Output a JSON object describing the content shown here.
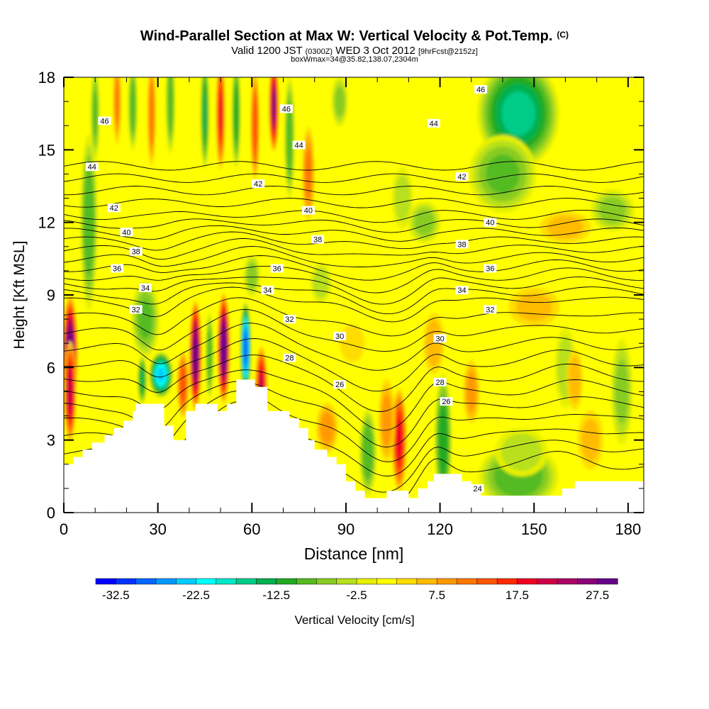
{
  "chart_data": {
    "type": "heatmap",
    "title": "Wind-Parallel Section at Max W: Vertical Velocity & Pot.Temp.",
    "title_mark": "(C)",
    "subtitle": {
      "valid_prefix": "Valid 1200 JST",
      "utc": "(0300Z)",
      "date": "WED 3 Oct 2012",
      "forecast": "[9hrFcst@2152z]"
    },
    "box_info": "boxWmax=34@35.82,138.07,2304m",
    "xlabel": "Distance [nm]",
    "ylabel": "Height [Kft MSL]",
    "xlim": [
      0,
      185
    ],
    "ylim": [
      0,
      18
    ],
    "xticks": [
      0,
      30,
      60,
      90,
      120,
      150,
      180
    ],
    "yticks": [
      0,
      3,
      6,
      9,
      12,
      15,
      18
    ],
    "colorbar": {
      "label": "Vertical Velocity [cm/s]",
      "tick_labels": [
        "-32.5",
        "-22.5",
        "-12.5",
        "-2.5",
        "7.5",
        "17.5",
        "27.5"
      ],
      "colors": [
        "#0000ff",
        "#0033ff",
        "#0066ff",
        "#0099ff",
        "#00ccff",
        "#00ffff",
        "#00e8c8",
        "#00cc88",
        "#00b050",
        "#22aa22",
        "#55bb22",
        "#88cc22",
        "#b8e01e",
        "#e6f000",
        "#ffff00",
        "#ffdd00",
        "#ffbb00",
        "#ff9900",
        "#ff7700",
        "#ff5500",
        "#ff2a00",
        "#ee0022",
        "#cc0044",
        "#aa0066",
        "#880077",
        "#660088"
      ]
    },
    "background_color": "#ffff00",
    "terrain": [
      [
        0,
        2.0
      ],
      [
        3,
        2.0
      ],
      [
        3,
        2.3
      ],
      [
        6,
        2.3
      ],
      [
        6,
        2.6
      ],
      [
        9,
        2.6
      ],
      [
        9,
        2.9
      ],
      [
        13,
        2.9
      ],
      [
        13,
        3.2
      ],
      [
        16,
        3.2
      ],
      [
        16,
        3.5
      ],
      [
        19,
        3.5
      ],
      [
        19,
        3.8
      ],
      [
        22,
        3.8
      ],
      [
        22,
        4.2
      ],
      [
        23,
        4.2
      ],
      [
        23,
        4.5
      ],
      [
        32,
        4.5
      ],
      [
        32,
        3.6
      ],
      [
        35,
        3.6
      ],
      [
        35,
        3.0
      ],
      [
        39,
        3.0
      ],
      [
        39,
        4.2
      ],
      [
        42,
        4.2
      ],
      [
        42,
        4.5
      ],
      [
        49,
        4.5
      ],
      [
        49,
        4.2
      ],
      [
        52,
        4.2
      ],
      [
        52,
        4.5
      ],
      [
        55,
        4.5
      ],
      [
        55,
        5.5
      ],
      [
        61,
        5.5
      ],
      [
        61,
        5.2
      ],
      [
        65,
        5.2
      ],
      [
        65,
        4.2
      ],
      [
        72,
        4.2
      ],
      [
        72,
        3.9
      ],
      [
        75,
        3.9
      ],
      [
        75,
        3.5
      ],
      [
        78,
        3.5
      ],
      [
        78,
        3.0
      ],
      [
        80,
        3.0
      ],
      [
        80,
        2.6
      ],
      [
        84,
        2.6
      ],
      [
        84,
        2.3
      ],
      [
        87,
        2.3
      ],
      [
        87,
        2.0
      ],
      [
        90,
        2.0
      ],
      [
        90,
        1.3
      ],
      [
        93,
        1.3
      ],
      [
        93,
        0.9
      ],
      [
        96,
        0.9
      ],
      [
        96,
        0.6
      ],
      [
        103,
        0.6
      ],
      [
        103,
        0.9
      ],
      [
        110,
        0.9
      ],
      [
        110,
        0.6
      ],
      [
        113,
        0.6
      ],
      [
        113,
        1.0
      ],
      [
        116,
        1.0
      ],
      [
        116,
        1.3
      ],
      [
        118,
        1.3
      ],
      [
        118,
        1.6
      ],
      [
        127,
        1.6
      ],
      [
        127,
        1.3
      ],
      [
        130,
        1.3
      ],
      [
        130,
        1.0
      ],
      [
        133,
        1.0
      ],
      [
        133,
        0.7
      ],
      [
        159,
        0.7
      ],
      [
        159,
        1.0
      ],
      [
        163,
        1.0
      ],
      [
        163,
        1.3
      ],
      [
        185,
        1.3
      ],
      [
        185,
        0
      ],
      [
        0,
        0
      ]
    ],
    "anomalies": [
      {
        "x": 2,
        "y": 6.5,
        "w": 30,
        "rx": 2.5,
        "ry": 2.6
      },
      {
        "x": 2,
        "y": 5.0,
        "w": 22,
        "rx": 2.0,
        "ry": 2.2
      },
      {
        "x": 8,
        "y": 12.0,
        "w": -12,
        "rx": 3,
        "ry": 4
      },
      {
        "x": 26,
        "y": 8.0,
        "w": -10,
        "rx": 5,
        "ry": 1.8
      },
      {
        "x": 31,
        "y": 5.7,
        "w": -25,
        "rx": 4,
        "ry": 1.0
      },
      {
        "x": 38,
        "y": 5.6,
        "w": -20,
        "rx": 1.6,
        "ry": 1.0
      },
      {
        "x": 25,
        "y": 5.5,
        "w": -15,
        "rx": 1.6,
        "ry": 1.1
      },
      {
        "x": 42,
        "y": 6.5,
        "w": 28,
        "rx": 2,
        "ry": 2.4
      },
      {
        "x": 51,
        "y": 6.8,
        "w": 30,
        "rx": 2,
        "ry": 2.4
      },
      {
        "x": 46.5,
        "y": 6.5,
        "w": -12,
        "rx": 1.4,
        "ry": 2.0
      },
      {
        "x": 58,
        "y": 6.8,
        "w": -32,
        "rx": 1.8,
        "ry": 2.0
      },
      {
        "x": 63,
        "y": 5.2,
        "w": 20,
        "rx": 2,
        "ry": 1.8
      },
      {
        "x": 38,
        "y": 5.3,
        "w": 14,
        "rx": 2,
        "ry": 1.5
      },
      {
        "x": 10,
        "y": 16.5,
        "w": -10,
        "rx": 1.6,
        "ry": 2.2
      },
      {
        "x": 17,
        "y": 17,
        "w": 10,
        "rx": 1.4,
        "ry": 2.0
      },
      {
        "x": 22,
        "y": 16.8,
        "w": -12,
        "rx": 1.6,
        "ry": 2.0
      },
      {
        "x": 28,
        "y": 16.5,
        "w": 12,
        "rx": 1.4,
        "ry": 2.4
      },
      {
        "x": 34,
        "y": 17,
        "w": -12,
        "rx": 1.6,
        "ry": 2.4
      },
      {
        "x": 45,
        "y": 16.5,
        "w": -15,
        "rx": 1.5,
        "ry": 2.5
      },
      {
        "x": 50,
        "y": 16.5,
        "w": 18,
        "rx": 1.5,
        "ry": 2.5
      },
      {
        "x": 55,
        "y": 16.5,
        "w": -14,
        "rx": 1.5,
        "ry": 2.5
      },
      {
        "x": 61,
        "y": 16.0,
        "w": 14,
        "rx": 1.5,
        "ry": 2.5
      },
      {
        "x": 67,
        "y": 16.8,
        "w": 25,
        "rx": 1.6,
        "ry": 2.0
      },
      {
        "x": 72,
        "y": 15.5,
        "w": -12,
        "rx": 1.8,
        "ry": 2.8
      },
      {
        "x": 78,
        "y": 14.0,
        "w": 10,
        "rx": 2.2,
        "ry": 2.2
      },
      {
        "x": 88,
        "y": 17.0,
        "w": -8,
        "rx": 3,
        "ry": 1.2
      },
      {
        "x": 108,
        "y": 13.0,
        "w": -6,
        "rx": 4,
        "ry": 1.5
      },
      {
        "x": 115,
        "y": 12.0,
        "w": -8,
        "rx": 6,
        "ry": 1.0
      },
      {
        "x": 145,
        "y": 16.5,
        "w": -18,
        "rx": 14,
        "ry": 2.4
      },
      {
        "x": 140,
        "y": 14.0,
        "w": -10,
        "rx": 12,
        "ry": 1.8
      },
      {
        "x": 175,
        "y": 12.5,
        "w": -8,
        "rx": 8,
        "ry": 1.0
      },
      {
        "x": 160,
        "y": 11.8,
        "w": 5,
        "rx": 10,
        "ry": 0.8
      },
      {
        "x": 82,
        "y": 9.5,
        "w": -6,
        "rx": 4,
        "ry": 1.0
      },
      {
        "x": 60,
        "y": 9.8,
        "w": -8,
        "rx": 3,
        "ry": 1.0
      },
      {
        "x": 97,
        "y": 2.5,
        "w": -12,
        "rx": 3,
        "ry": 2.0
      },
      {
        "x": 107,
        "y": 3.0,
        "w": 18,
        "rx": 2.5,
        "ry": 2.3
      },
      {
        "x": 103,
        "y": 3.8,
        "w": 8,
        "rx": 3,
        "ry": 2.0
      },
      {
        "x": 121,
        "y": 3.0,
        "w": -14,
        "rx": 3,
        "ry": 3.0
      },
      {
        "x": 118,
        "y": 7.0,
        "w": 6,
        "rx": 4,
        "ry": 1.5
      },
      {
        "x": 145,
        "y": 1.5,
        "w": -12,
        "rx": 14,
        "ry": 1.5
      },
      {
        "x": 146,
        "y": 2.5,
        "w": -6,
        "rx": 10,
        "ry": 1.2
      },
      {
        "x": 160,
        "y": 6.0,
        "w": -6,
        "rx": 4,
        "ry": 2.0
      },
      {
        "x": 178,
        "y": 5.0,
        "w": -8,
        "rx": 4,
        "ry": 2.5
      },
      {
        "x": 163,
        "y": 5.5,
        "w": 6,
        "rx": 3,
        "ry": 1.5
      },
      {
        "x": 168,
        "y": 3.0,
        "w": 5,
        "rx": 5,
        "ry": 1.5
      },
      {
        "x": 130,
        "y": 5.0,
        "w": 8,
        "rx": 3,
        "ry": 1.5
      },
      {
        "x": 84,
        "y": 3.5,
        "w": 8,
        "rx": 4,
        "ry": 1.2
      },
      {
        "x": 92,
        "y": 7.0,
        "w": 4,
        "rx": 5,
        "ry": 1.0
      },
      {
        "x": 150,
        "y": 8.5,
        "w": 5,
        "rx": 10,
        "ry": 1.0
      }
    ],
    "theta_labels": [
      {
        "text": "46",
        "x": 13,
        "y": 16.2
      },
      {
        "text": "44",
        "x": 9,
        "y": 14.3
      },
      {
        "text": "42",
        "x": 16,
        "y": 12.6
      },
      {
        "text": "40",
        "x": 20,
        "y": 11.6
      },
      {
        "text": "38",
        "x": 23,
        "y": 10.8
      },
      {
        "text": "36",
        "x": 17,
        "y": 10.1
      },
      {
        "text": "34",
        "x": 26,
        "y": 9.3
      },
      {
        "text": "32",
        "x": 23,
        "y": 8.4
      },
      {
        "text": "46",
        "x": 71,
        "y": 16.7
      },
      {
        "text": "44",
        "x": 75,
        "y": 15.2
      },
      {
        "text": "42",
        "x": 62,
        "y": 13.6
      },
      {
        "text": "40",
        "x": 78,
        "y": 12.5
      },
      {
        "text": "38",
        "x": 81,
        "y": 11.3
      },
      {
        "text": "36",
        "x": 68,
        "y": 10.1
      },
      {
        "text": "34",
        "x": 65,
        "y": 9.2
      },
      {
        "text": "32",
        "x": 72,
        "y": 8.0
      },
      {
        "text": "28",
        "x": 72,
        "y": 6.4
      },
      {
        "text": "30",
        "x": 88,
        "y": 7.3
      },
      {
        "text": "26",
        "x": 88,
        "y": 5.3
      },
      {
        "text": "46",
        "x": 133,
        "y": 17.5
      },
      {
        "text": "44",
        "x": 118,
        "y": 16.1
      },
      {
        "text": "42",
        "x": 127,
        "y": 13.9
      },
      {
        "text": "40",
        "x": 136,
        "y": 12.0
      },
      {
        "text": "38",
        "x": 127,
        "y": 11.1
      },
      {
        "text": "36",
        "x": 136,
        "y": 10.1
      },
      {
        "text": "34",
        "x": 127,
        "y": 9.2
      },
      {
        "text": "32",
        "x": 136,
        "y": 8.4
      },
      {
        "text": "30",
        "x": 120,
        "y": 7.2
      },
      {
        "text": "28",
        "x": 120,
        "y": 5.4
      },
      {
        "text": "26",
        "x": 122,
        "y": 4.6
      },
      {
        "text": "24",
        "x": 132,
        "y": 1.0
      }
    ]
  }
}
